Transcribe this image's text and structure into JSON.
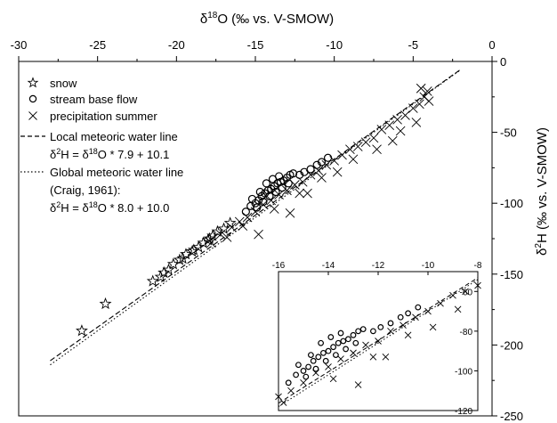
{
  "chart_data": {
    "type": "scatter",
    "xlabel_base": "δ",
    "xlabel_sup": "18",
    "xlabel_rest": "O (‰ vs. V-SMOW)",
    "ylabel_base": "δ",
    "ylabel_sup": "2",
    "ylabel_rest": "H (‰ vs. V-SMOW)",
    "xlim": [
      -30,
      0
    ],
    "ylim": [
      -250,
      0
    ],
    "x_ticks": [
      "-30",
      "-25",
      "-20",
      "-15",
      "-10",
      "-5",
      "0"
    ],
    "y_ticks": [
      "0",
      "-50",
      "-100",
      "-150",
      "-200",
      "-250"
    ],
    "legend": {
      "snow": "snow",
      "stream": "stream base flow",
      "precip": "precipitation summer",
      "lmwl": "Local meteoric water line",
      "lmwl_eq_a": "δ",
      "lmwl_eq_b": "2",
      "lmwl_eq_c": "H = δ",
      "lmwl_eq_d": "18",
      "lmwl_eq_e": "O * 7.9 + 10.1",
      "gmwl": "Global meteoric water line",
      "gmwl_ref": "(Craig, 1961):",
      "gmwl_eq_a": "δ",
      "gmwl_eq_b": "2",
      "gmwl_eq_c": "H = δ",
      "gmwl_eq_d": "18",
      "gmwl_eq_e": "O * 8.0 + 10.0"
    },
    "lines": [
      {
        "name": "Local meteoric water line",
        "slope": 7.9,
        "intercept": 10.1,
        "x_range": [
          -28,
          -2
        ],
        "style": "dashed"
      },
      {
        "name": "Global meteoric water line",
        "slope": 8.0,
        "intercept": 10.0,
        "x_range": [
          -28,
          -2
        ],
        "style": "dotted"
      }
    ],
    "series": [
      {
        "name": "snow",
        "marker": "star",
        "points": [
          [
            -26,
            -190
          ],
          [
            -24.5,
            -171
          ],
          [
            -21.5,
            -155
          ],
          [
            -21,
            -152
          ],
          [
            -20.5,
            -147
          ],
          [
            -20.2,
            -143
          ],
          [
            -19.8,
            -140
          ],
          [
            -19.4,
            -136
          ],
          [
            -19,
            -134
          ],
          [
            -18.6,
            -131
          ],
          [
            -18.3,
            -128
          ],
          [
            -18,
            -126
          ],
          [
            -17.7,
            -123
          ],
          [
            -17.4,
            -120
          ],
          [
            -17,
            -118
          ],
          [
            -16.6,
            -114
          ],
          [
            -20.8,
            -149
          ],
          [
            -19.6,
            -139
          ],
          [
            -18.9,
            -133
          ],
          [
            -17.9,
            -125
          ]
        ]
      },
      {
        "name": "stream base flow",
        "marker": "circle",
        "points": [
          [
            -15.6,
            -106
          ],
          [
            -15.3,
            -102
          ],
          [
            -15.0,
            -100
          ],
          [
            -14.8,
            -98
          ],
          [
            -14.6,
            -95
          ],
          [
            -14.4,
            -93
          ],
          [
            -14.2,
            -91
          ],
          [
            -14.0,
            -90
          ],
          [
            -13.8,
            -88
          ],
          [
            -13.6,
            -86
          ],
          [
            -13.4,
            -85
          ],
          [
            -13.2,
            -84
          ],
          [
            -13.0,
            -82
          ],
          [
            -12.8,
            -80
          ],
          [
            -12.6,
            -79
          ],
          [
            -14.9,
            -103
          ],
          [
            -14.5,
            -99
          ],
          [
            -14.1,
            -95
          ],
          [
            -13.7,
            -92
          ],
          [
            -13.3,
            -89
          ],
          [
            -12.9,
            -86
          ],
          [
            -14.3,
            -86
          ],
          [
            -13.9,
            -83
          ],
          [
            -13.5,
            -81
          ],
          [
            -15.2,
            -97
          ],
          [
            -14.7,
            -92
          ],
          [
            -12.2,
            -80
          ],
          [
            -11.9,
            -78
          ],
          [
            -11.5,
            -76
          ],
          [
            -11.1,
            -73
          ],
          [
            -10.8,
            -71
          ],
          [
            -10.4,
            -68
          ]
        ]
      },
      {
        "name": "precipitation summer",
        "marker": "x",
        "points": [
          [
            -17.8,
            -128
          ],
          [
            -17.2,
            -122
          ],
          [
            -16.5,
            -117
          ],
          [
            -16.0,
            -113
          ],
          [
            -15.5,
            -110
          ],
          [
            -15.0,
            -106
          ],
          [
            -14.5,
            -101
          ],
          [
            -14.0,
            -98
          ],
          [
            -13.5,
            -94
          ],
          [
            -13.0,
            -91
          ],
          [
            -12.5,
            -87
          ],
          [
            -12.0,
            -85
          ],
          [
            -11.5,
            -80
          ],
          [
            -11.0,
            -77
          ],
          [
            -10.5,
            -73
          ],
          [
            -10.0,
            -70
          ],
          [
            -9.5,
            -66
          ],
          [
            -9.0,
            -62
          ],
          [
            -8.5,
            -60
          ],
          [
            -8.0,
            -57
          ],
          [
            -7.5,
            -54
          ],
          [
            -7.0,
            -48
          ],
          [
            -6.5,
            -45
          ],
          [
            -6.0,
            -41
          ],
          [
            -5.5,
            -38
          ],
          [
            -5.0,
            -33
          ],
          [
            -4.6,
            -30
          ],
          [
            -4.3,
            -25
          ],
          [
            -4.1,
            -21
          ],
          [
            -4.5,
            -19
          ],
          [
            -12.8,
            -107
          ],
          [
            -14.8,
            -122
          ],
          [
            -13.8,
            -104
          ],
          [
            -11.7,
            -93
          ],
          [
            -8.8,
            -69
          ],
          [
            -7.3,
            -62
          ],
          [
            -5.8,
            -49
          ],
          [
            -6.3,
            -56
          ],
          [
            -4.8,
            -43
          ],
          [
            -4.0,
            -28
          ],
          [
            -12.2,
            -93
          ],
          [
            -9.8,
            -78
          ],
          [
            -10.8,
            -82
          ],
          [
            -15.8,
            -116
          ],
          [
            -16.8,
            -124
          ]
        ]
      }
    ],
    "inset": {
      "xlim": [
        -16,
        -8
      ],
      "ylim": [
        -120,
        -50
      ],
      "x_ticks": [
        "-16",
        "-14",
        "-12",
        "-10",
        "-8"
      ],
      "y_ticks": [
        "-60",
        "-80",
        "-100",
        "-120"
      ]
    }
  }
}
